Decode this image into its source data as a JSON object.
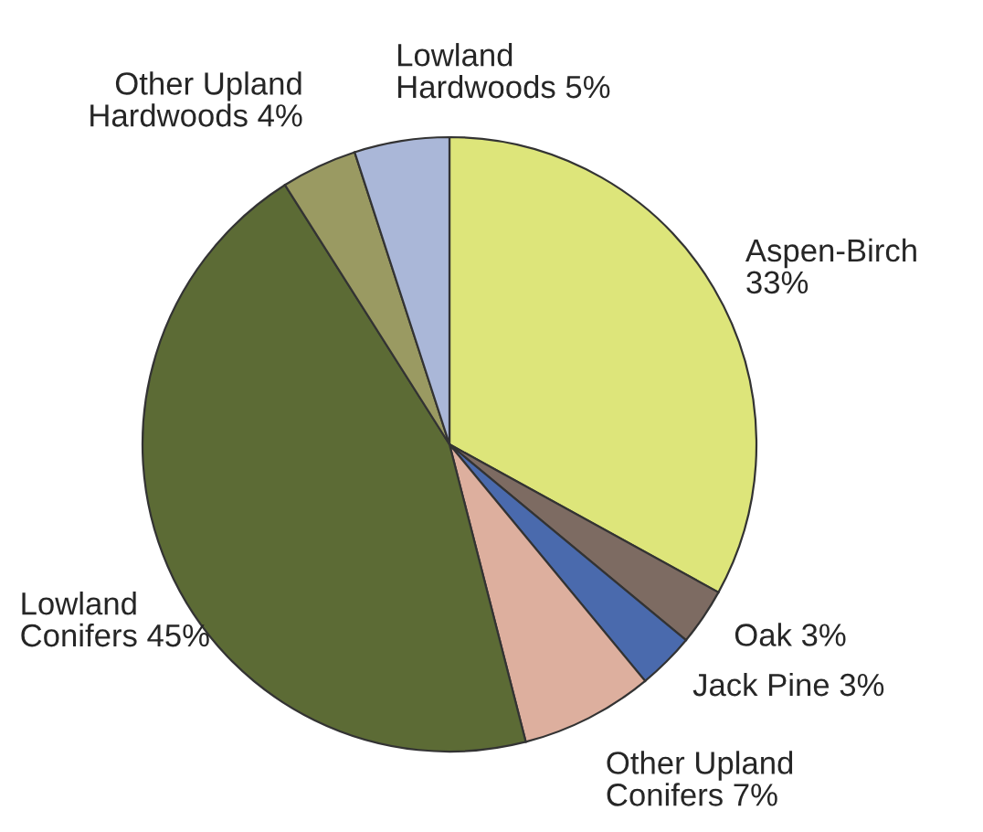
{
  "chart_data": {
    "type": "pie",
    "categories": [
      "Aspen-Birch",
      "Oak",
      "Jack Pine",
      "Other Upland\nConifers",
      "Lowland\nConifers",
      "Other Upland\nHardwoods",
      "Lowland\nHardwoods"
    ],
    "values": [
      33,
      3,
      3,
      7,
      45,
      4,
      5
    ],
    "value_labels": [
      "33%",
      "3%",
      "3%",
      "7%",
      "45%",
      "4%",
      "5%"
    ],
    "colors": [
      "#dde57a",
      "#7d6b62",
      "#4a6aad",
      "#ddaf9e",
      "#5c6b35",
      "#9a9a62",
      "#aab7d8"
    ]
  }
}
